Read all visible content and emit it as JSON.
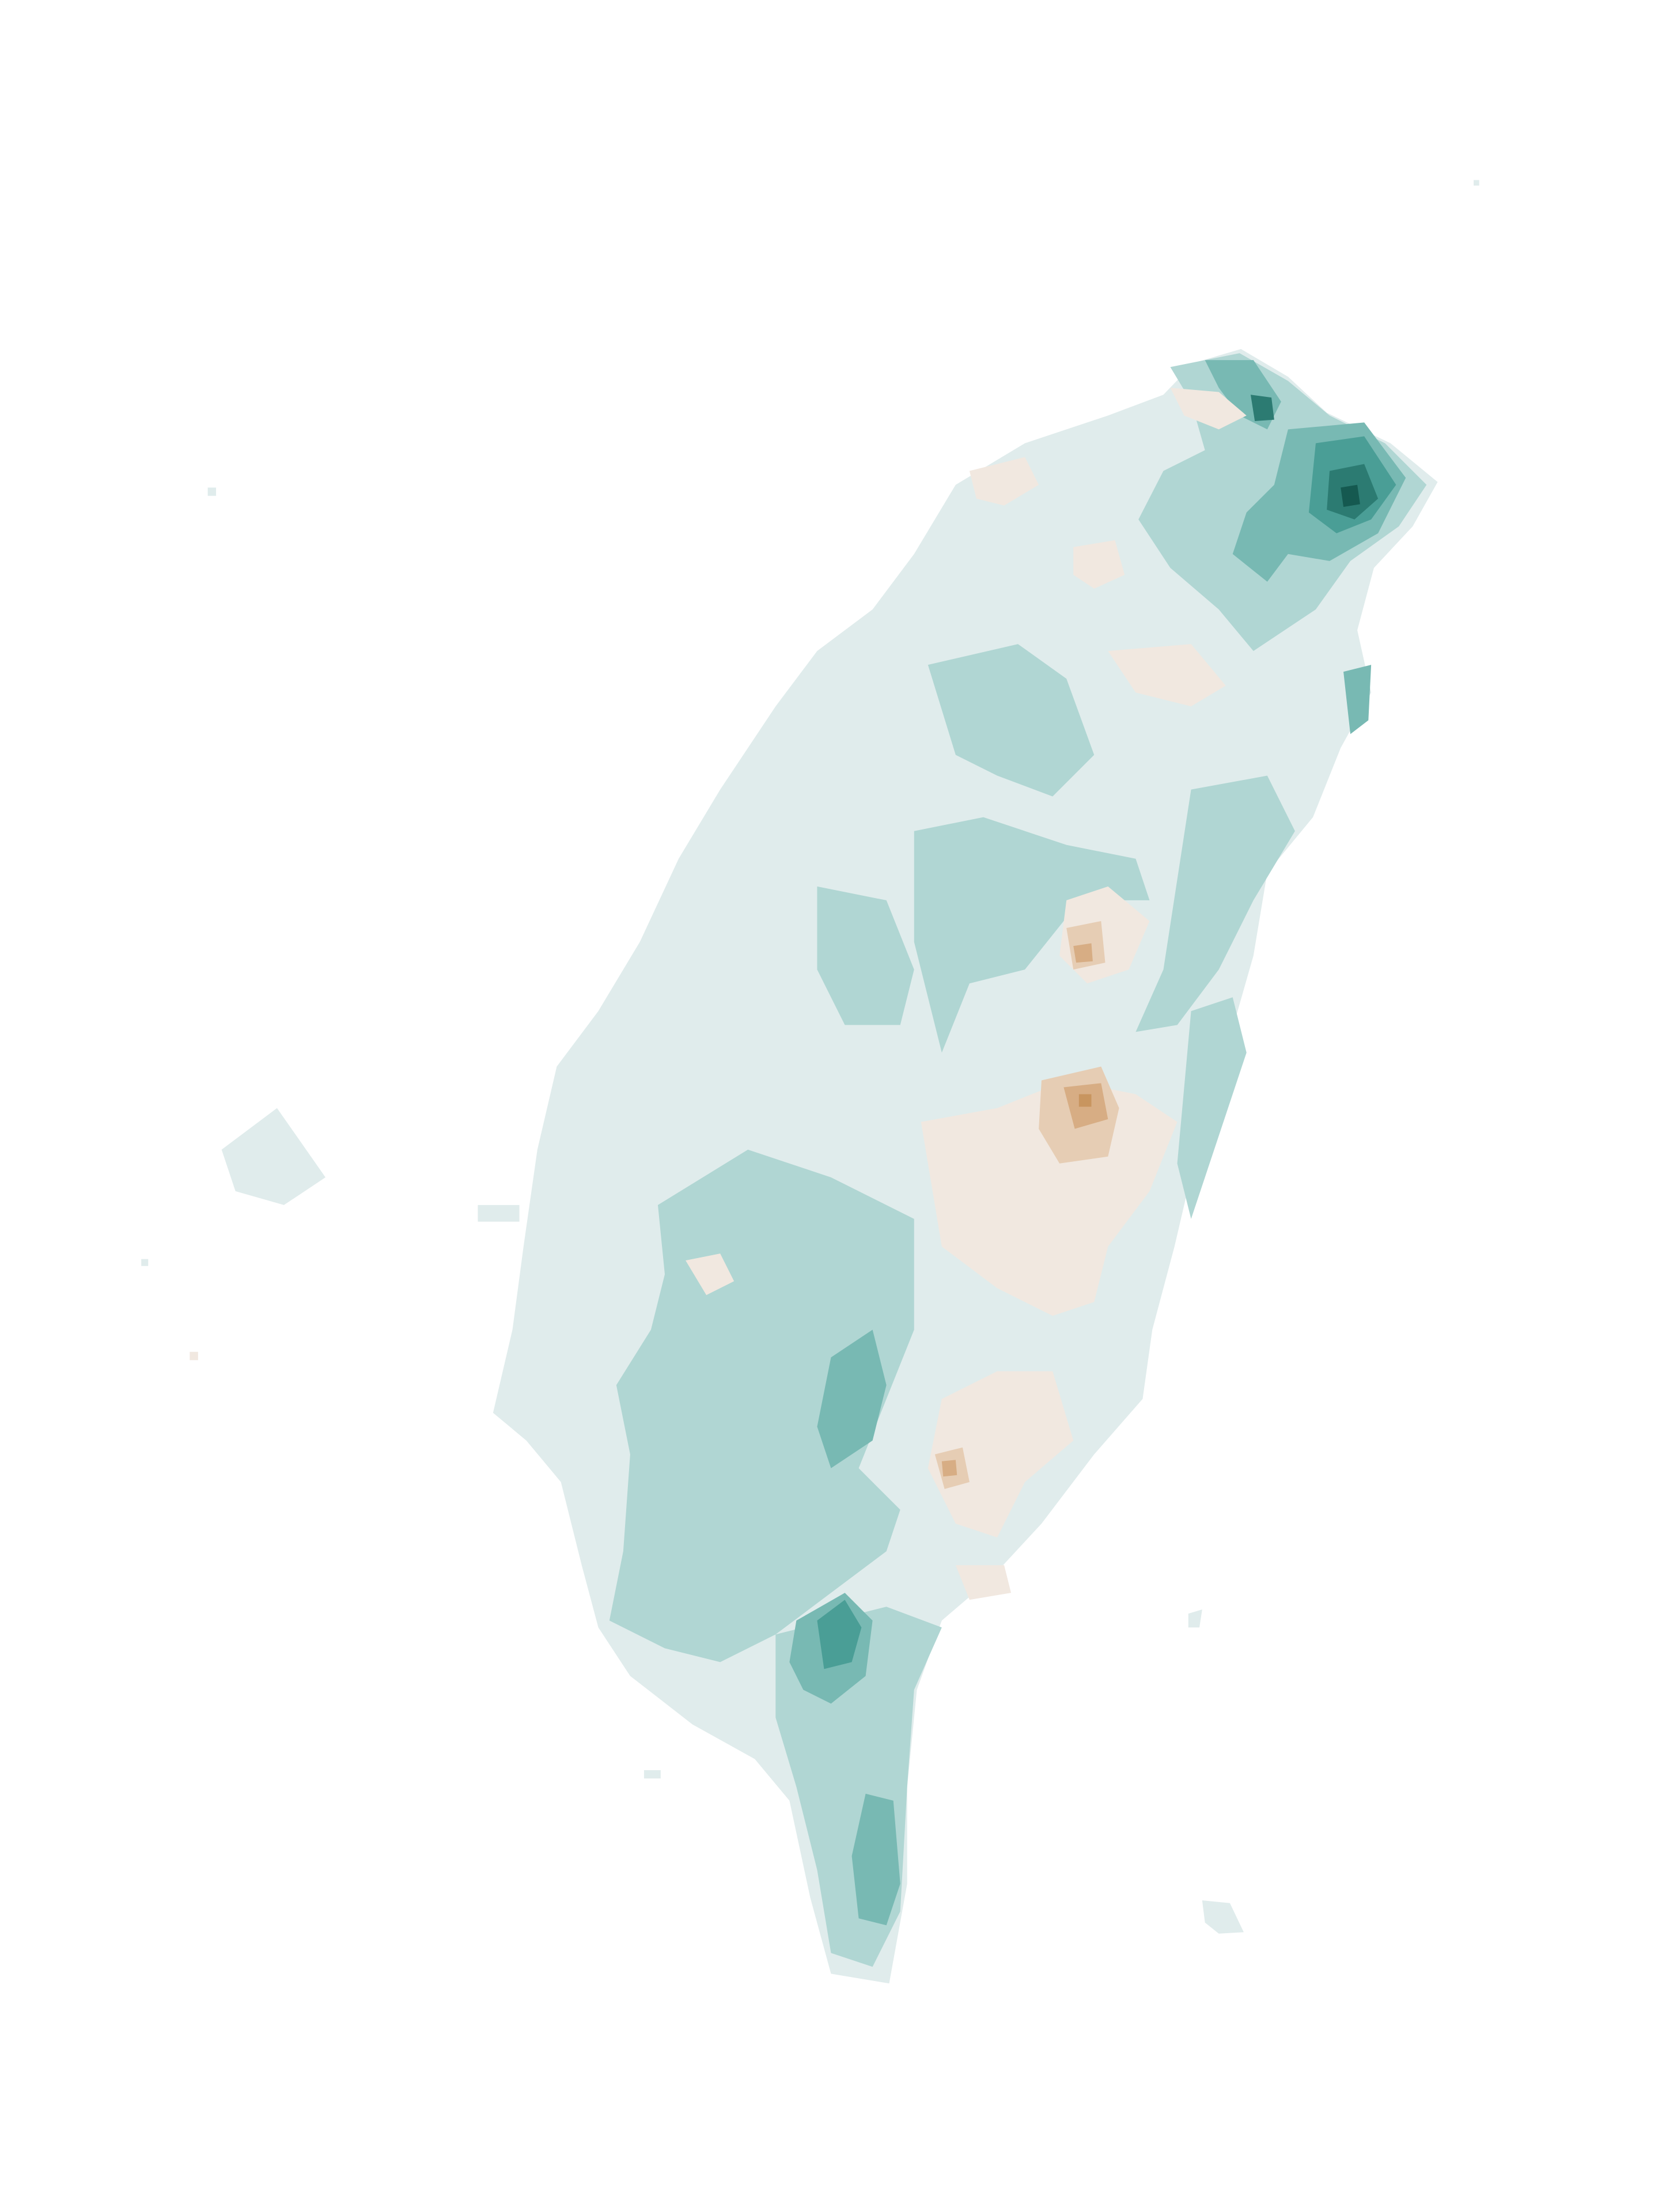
{
  "map": {
    "kind": "filled-contour",
    "colors": {
      "background": "#ffffff",
      "base": "#e0ecec",
      "teal_1": "#b0d6d3",
      "teal_2": "#78b9b3",
      "teal_3": "#4a9e96",
      "teal_4": "#2c7b72",
      "teal_5": "#155950",
      "tan_1": "#f1e8e0",
      "tan_2": "#e6cdb4",
      "tan_3": "#d7ad84",
      "tan_4": "#c8955f"
    }
  }
}
